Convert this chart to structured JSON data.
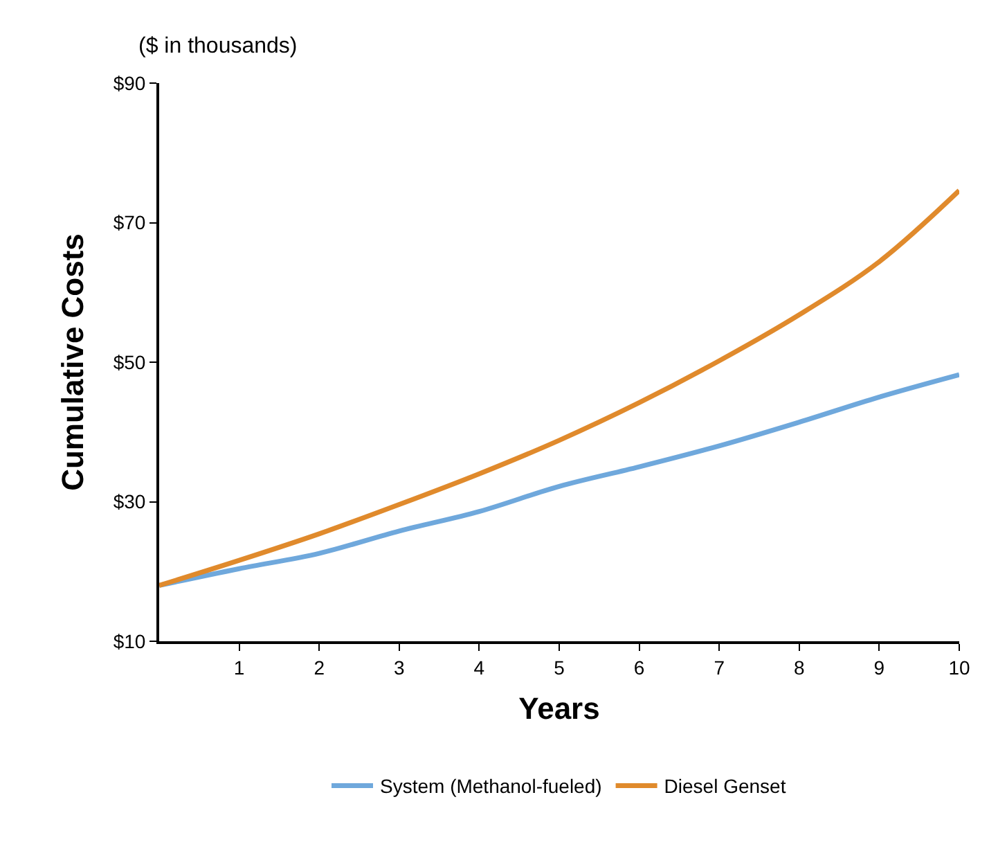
{
  "chart_data": {
    "type": "line",
    "ylabel": "Cumulative Costs",
    "xlabel": "Years",
    "annotations": [
      "($ in thousands)"
    ],
    "x": [
      0,
      1,
      2,
      3,
      4,
      5,
      6,
      7,
      8,
      9,
      10
    ],
    "series": [
      {
        "name": "System (Methanol-fueled)",
        "color": "#6fa8dc",
        "values": [
          18,
          20.4,
          22.6,
          25.8,
          28.6,
          32.2,
          35,
          38,
          41.4,
          45,
          48.2
        ]
      },
      {
        "name": "Diesel Genset",
        "color": "#e08a2c",
        "values": [
          18,
          21.6,
          25.4,
          29.6,
          34,
          38.8,
          44.2,
          50.2,
          56.8,
          64.4,
          74.6
        ]
      }
    ],
    "xlim": [
      0,
      10
    ],
    "xticks": [
      1,
      2,
      3,
      4,
      5,
      6,
      7,
      8,
      9,
      10
    ],
    "ylim": [
      10,
      90
    ],
    "yticks": [
      {
        "value": 10,
        "label": "$10"
      },
      {
        "value": 30,
        "label": "$30"
      },
      {
        "value": 50,
        "label": "$50"
      },
      {
        "value": 70,
        "label": "$70"
      },
      {
        "value": 90,
        "label": "$90"
      }
    ],
    "legend": "bottom",
    "marker": "none",
    "line_style": "solid"
  }
}
